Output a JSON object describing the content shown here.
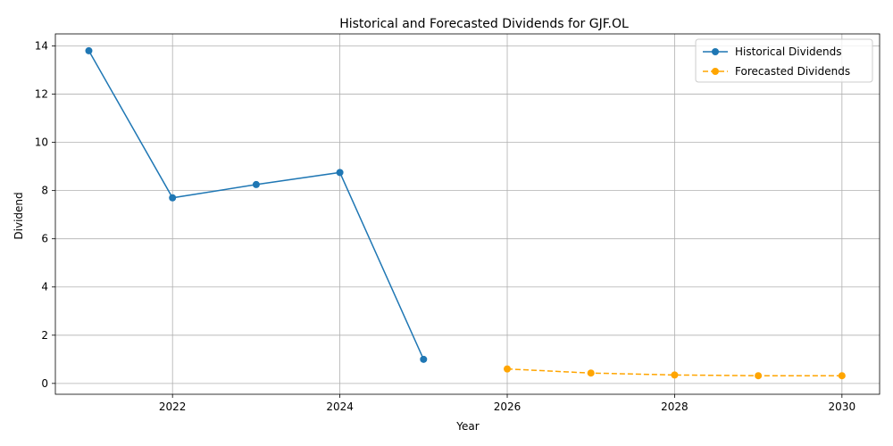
{
  "chart_data": {
    "type": "line",
    "title": "Historical and Forecasted Dividends for GJF.OL",
    "xlabel": "Year",
    "ylabel": "Dividend",
    "xlim": [
      2020.6,
      2030.45
    ],
    "ylim": [
      -0.45,
      14.5
    ],
    "xticks": [
      2022,
      2024,
      2026,
      2028,
      2030
    ],
    "yticks": [
      0,
      2,
      4,
      6,
      8,
      10,
      12,
      14
    ],
    "grid": true,
    "legend_position": "top-right",
    "series": [
      {
        "name": "Historical Dividends",
        "color": "#1f77b4",
        "linestyle": "solid",
        "marker": "circle",
        "x": [
          2021,
          2022,
          2023,
          2024,
          2025
        ],
        "y": [
          13.8,
          7.7,
          8.25,
          8.75,
          1.0
        ]
      },
      {
        "name": "Forecasted Dividends",
        "color": "#ffa500",
        "linestyle": "dashed",
        "marker": "circle",
        "x": [
          2026,
          2027,
          2028,
          2029,
          2030
        ],
        "y": [
          0.6,
          0.43,
          0.35,
          0.32,
          0.32
        ]
      }
    ]
  }
}
